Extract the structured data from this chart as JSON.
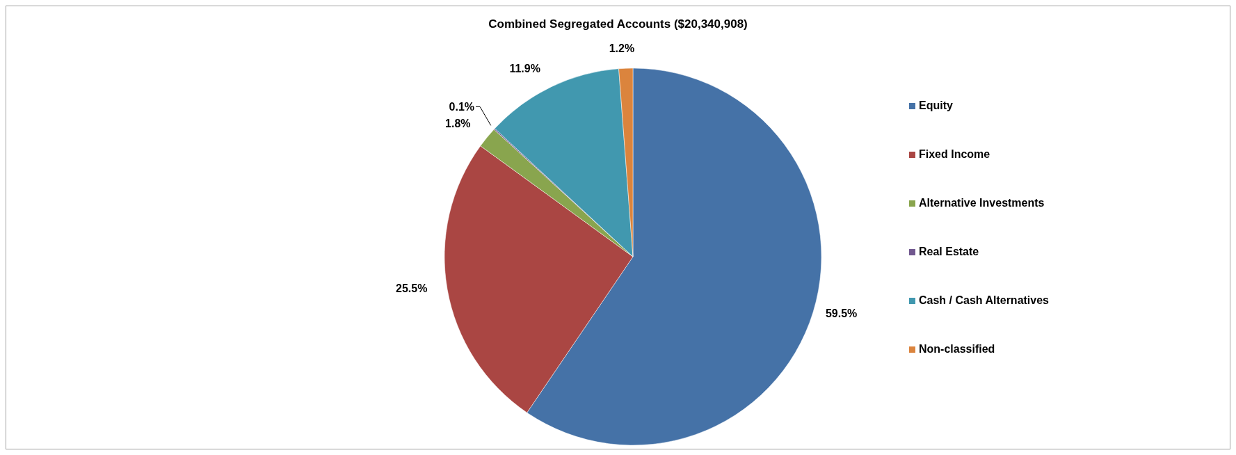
{
  "chart_data": {
    "type": "pie",
    "title": "Combined Segregated Accounts ($20,340,908)",
    "categories": [
      "Equity",
      "Fixed Income",
      "Alternative Investments",
      "Real Estate",
      "Cash / Cash Alternatives",
      "Non-classified"
    ],
    "values": [
      59.5,
      25.5,
      1.8,
      0.1,
      11.9,
      1.2
    ],
    "colors": [
      "#4572a7",
      "#aa4643",
      "#89a54e",
      "#71588f",
      "#4198af",
      "#db843d"
    ],
    "value_labels": [
      "59.5%",
      "25.5%",
      "1.8%",
      "0.1%",
      "11.9%",
      "1.2%"
    ],
    "legend": "right"
  }
}
